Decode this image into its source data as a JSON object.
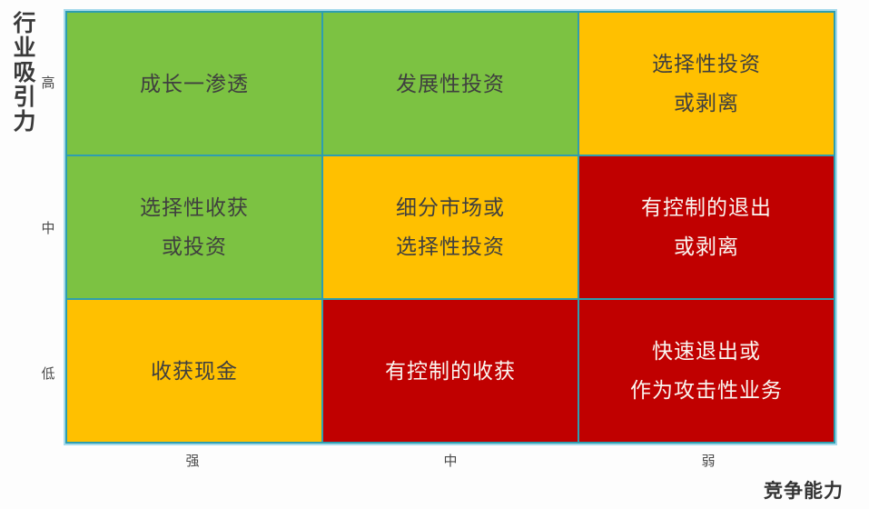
{
  "colors": {
    "green": "#7cc242",
    "yellow": "#ffc000",
    "red": "#c00000",
    "grid_teal": "#2e9eaf",
    "frame_light_blue": "#a6daec",
    "text_dark": "#3f3f3f",
    "text_light": "#faf5f0"
  },
  "y_axis": {
    "title": "行业吸引力",
    "ticks": [
      "高",
      "中",
      "低"
    ]
  },
  "x_axis": {
    "title": "竞争能力",
    "ticks": [
      "强",
      "中",
      "弱"
    ]
  },
  "matrix": {
    "rows_meaning": "行业吸引力: 高/中/低 (top to bottom)",
    "cols_meaning": "竞争能力: 强/中/弱 (left to right)",
    "cells": [
      {
        "row": "高",
        "col": "强",
        "text": "成长一渗透",
        "bg": "#7cc242",
        "fg": "#3f3f3f"
      },
      {
        "row": "高",
        "col": "中",
        "text": "发展性投资",
        "bg": "#7cc242",
        "fg": "#3f3f3f"
      },
      {
        "row": "高",
        "col": "弱",
        "text": "选择性投资\n或剥离",
        "bg": "#ffc000",
        "fg": "#3f3f3f"
      },
      {
        "row": "中",
        "col": "强",
        "text": "选择性收获\n或投资",
        "bg": "#7cc242",
        "fg": "#3f3f3f"
      },
      {
        "row": "中",
        "col": "中",
        "text": "细分市场或\n选择性投资",
        "bg": "#ffc000",
        "fg": "#3f3f3f"
      },
      {
        "row": "中",
        "col": "弱",
        "text": "有控制的退出\n或剥离",
        "bg": "#c00000",
        "fg": "#faf5f0"
      },
      {
        "row": "低",
        "col": "强",
        "text": "收获现金",
        "bg": "#ffc000",
        "fg": "#3f3f3f"
      },
      {
        "row": "低",
        "col": "中",
        "text": "有控制的收获",
        "bg": "#c00000",
        "fg": "#faf5f0"
      },
      {
        "row": "低",
        "col": "弱",
        "text": "快速退出或\n作为攻击性业务",
        "bg": "#c00000",
        "fg": "#faf5f0"
      }
    ]
  }
}
